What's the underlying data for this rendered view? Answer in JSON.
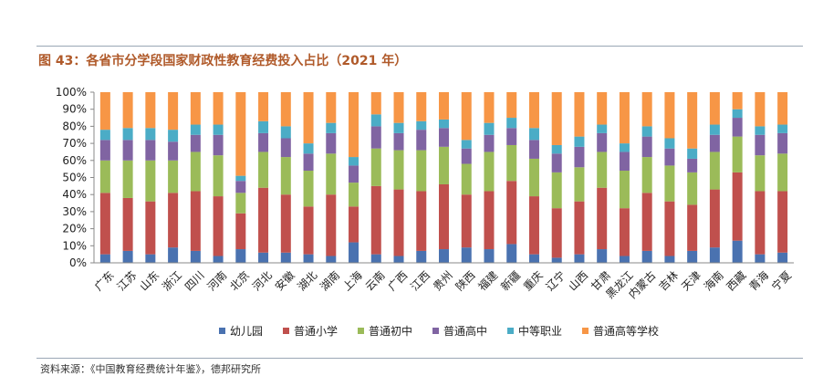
{
  "header": {
    "title": "图 43：各省市分学段国家财政性教育经费投入占比（2021 年）"
  },
  "footer": {
    "source": "资料来源：《中国教育经费统计年鉴》，德邦研究所"
  },
  "colors": {
    "series": [
      "#4a72b0",
      "#c0504d",
      "#9bbb59",
      "#8064a2",
      "#4bacc6",
      "#f79646"
    ],
    "title": "#b05a2a",
    "axis": "#888888"
  },
  "chart_data": {
    "type": "bar",
    "stacked": true,
    "title": "",
    "xlabel": "",
    "ylabel": "",
    "ylim": [
      0,
      100
    ],
    "yticks": [
      "0%",
      "10%",
      "20%",
      "30%",
      "40%",
      "50%",
      "60%",
      "70%",
      "80%",
      "90%",
      "100%"
    ],
    "legend_position": "bottom",
    "grid": false,
    "categories": [
      "广东",
      "江苏",
      "山东",
      "浙江",
      "四川",
      "河南",
      "北京",
      "河北",
      "安徽",
      "湖北",
      "湖南",
      "上海",
      "云南",
      "广西",
      "江西",
      "贵州",
      "陕西",
      "福建",
      "新疆",
      "重庆",
      "辽宁",
      "山西",
      "甘肃",
      "黑龙江",
      "内蒙古",
      "吉林",
      "天津",
      "海南",
      "西藏",
      "青海",
      "宁夏"
    ],
    "series": [
      {
        "name": "幼儿园",
        "values": [
          5,
          7,
          5,
          9,
          7,
          4,
          8,
          6,
          6,
          5,
          4,
          12,
          5,
          4,
          7,
          8,
          9,
          8,
          11,
          5,
          3,
          5,
          8,
          4,
          7,
          4,
          7,
          9,
          13,
          5,
          6
        ]
      },
      {
        "name": "普通小学",
        "values": [
          36,
          31,
          31,
          32,
          35,
          35,
          21,
          38,
          34,
          28,
          36,
          21,
          40,
          39,
          35,
          38,
          31,
          34,
          37,
          34,
          29,
          31,
          36,
          28,
          34,
          32,
          27,
          34,
          40,
          37,
          36
        ]
      },
      {
        "name": "普通初中",
        "values": [
          19,
          22,
          24,
          19,
          23,
          24,
          12,
          21,
          22,
          21,
          24,
          14,
          22,
          23,
          24,
          22,
          18,
          23,
          21,
          22,
          21,
          20,
          21,
          22,
          21,
          21,
          19,
          22,
          21,
          21,
          22
        ]
      },
      {
        "name": "普通高中",
        "values": [
          12,
          12,
          12,
          11,
          10,
          12,
          7,
          11,
          11,
          10,
          12,
          10,
          13,
          10,
          12,
          11,
          9,
          10,
          10,
          11,
          11,
          12,
          11,
          11,
          12,
          10,
          8,
          10,
          11,
          12,
          12
        ]
      },
      {
        "name": "中等职业",
        "values": [
          6,
          7,
          7,
          7,
          6,
          6,
          3,
          7,
          7,
          6,
          6,
          5,
          7,
          6,
          5,
          5,
          5,
          7,
          6,
          7,
          5,
          6,
          5,
          5,
          6,
          6,
          6,
          6,
          5,
          5,
          5
        ]
      },
      {
        "name": "普通高等学校",
        "values": [
          22,
          21,
          21,
          22,
          19,
          19,
          49,
          17,
          20,
          30,
          18,
          38,
          13,
          18,
          17,
          16,
          28,
          18,
          15,
          21,
          31,
          26,
          19,
          30,
          20,
          27,
          33,
          19,
          10,
          20,
          19
        ]
      }
    ]
  }
}
